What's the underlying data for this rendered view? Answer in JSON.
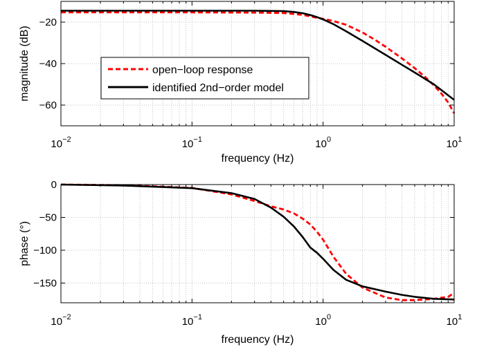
{
  "chart_data": [
    {
      "type": "line",
      "xscale": "log",
      "xlim": [
        0.01,
        10
      ],
      "ylim": [
        -70,
        -10
      ],
      "xlabel": "frequency (Hz)",
      "ylabel": "magnitude (dB)",
      "x_tick_labels": [
        {
          "base": "10",
          "exp": "−2"
        },
        {
          "base": "10",
          "exp": "−1"
        },
        {
          "base": "10",
          "exp": "0"
        },
        {
          "base": "10",
          "exp": "1"
        }
      ],
      "y_ticks": [
        -20,
        -40,
        -60
      ],
      "y_tick_labels": [
        "−20",
        "−40",
        "−60"
      ],
      "grid": true,
      "legend_position": "center-left",
      "colors": {
        "open_loop": "#ff0000",
        "model": "#000000"
      },
      "series": [
        {
          "name": "open−loop response",
          "style": "dashed",
          "x": [
            0.01,
            0.03,
            0.1,
            0.3,
            0.5,
            0.7,
            0.9,
            1.0,
            1.2,
            1.5,
            2.0,
            2.5,
            3.0,
            4.0,
            5.0,
            6.0,
            7.0,
            8.0,
            9.0,
            10.0
          ],
          "y": [
            -15.3,
            -15.3,
            -15.3,
            -15.4,
            -15.6,
            -16.5,
            -17.9,
            -18.4,
            -19.5,
            -21.3,
            -25.0,
            -28.6,
            -31.9,
            -37.5,
            -42.2,
            -46.4,
            -50.5,
            -54.5,
            -58.7,
            -64.0
          ]
        },
        {
          "name": "identified 2nd−order model",
          "style": "solid",
          "x": [
            0.01,
            0.1,
            0.3,
            0.5,
            0.6,
            0.7,
            0.8,
            0.9,
            1.0,
            1.2,
            1.5,
            2.0,
            3.0,
            4.0,
            5.0,
            7.0,
            10.0
          ],
          "y": [
            -14.5,
            -14.5,
            -14.5,
            -14.7,
            -15.1,
            -15.7,
            -16.6,
            -17.6,
            -18.7,
            -21.0,
            -24.4,
            -29.1,
            -35.8,
            -40.6,
            -44.3,
            -50.0,
            -57.5
          ]
        }
      ]
    },
    {
      "type": "line",
      "xscale": "log",
      "xlim": [
        0.01,
        10
      ],
      "ylim": [
        -180,
        0
      ],
      "xlabel": "frequency (Hz)",
      "ylabel": "phase (°)",
      "x_tick_labels": [
        {
          "base": "10",
          "exp": "−2"
        },
        {
          "base": "10",
          "exp": "−1"
        },
        {
          "base": "10",
          "exp": "0"
        },
        {
          "base": "10",
          "exp": "1"
        }
      ],
      "y_ticks": [
        0,
        -50,
        -100,
        -150
      ],
      "y_tick_labels": [
        "0",
        "−50",
        "−100",
        "−150"
      ],
      "grid": true,
      "colors": {
        "open_loop": "#ff0000",
        "model": "#000000"
      },
      "series": [
        {
          "name": "open−loop response",
          "style": "dashed",
          "x": [
            0.01,
            0.03,
            0.1,
            0.2,
            0.3,
            0.4,
            0.5,
            0.6,
            0.7,
            0.8,
            0.9,
            1.0,
            1.2,
            1.5,
            2.0,
            3.0,
            4.0,
            5.0,
            7.0,
            9.0,
            10.0
          ],
          "y": [
            0,
            -1,
            -5,
            -15,
            -25,
            -33,
            -38,
            -44,
            -52,
            -61,
            -72,
            -84,
            -110,
            -136,
            -157,
            -172,
            -176,
            -176,
            -174,
            -171,
            -165
          ]
        },
        {
          "name": "identified 2nd−order model",
          "style": "solid",
          "x": [
            0.01,
            0.03,
            0.1,
            0.2,
            0.3,
            0.4,
            0.5,
            0.6,
            0.7,
            0.8,
            0.9,
            1.0,
            1.2,
            1.5,
            2.0,
            3.0,
            4.0,
            5.0,
            7.0,
            10.0
          ],
          "y": [
            0,
            -1.5,
            -5.5,
            -13,
            -22,
            -35,
            -49,
            -64,
            -80,
            -96,
            -104,
            -113,
            -130,
            -145,
            -155,
            -163,
            -168,
            -171,
            -174,
            -175
          ]
        }
      ]
    }
  ]
}
